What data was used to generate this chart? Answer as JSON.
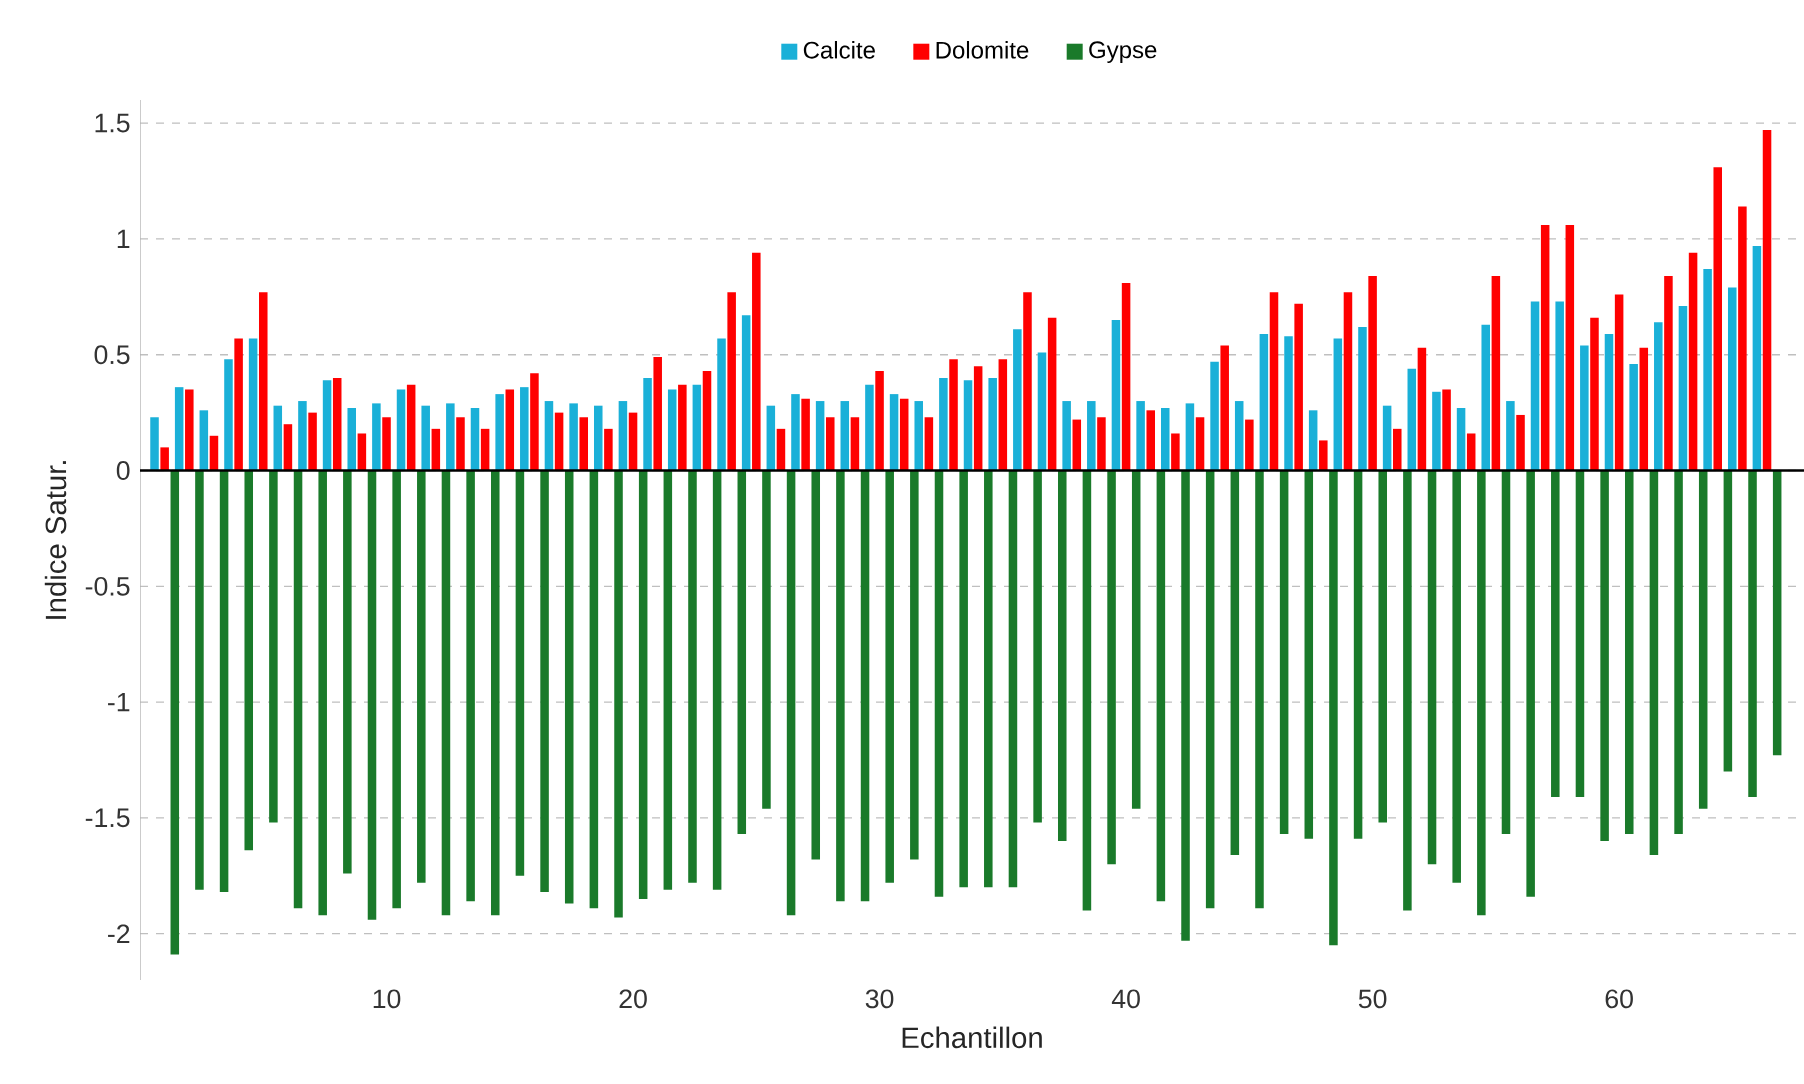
{
  "chart_data": {
    "type": "bar",
    "xlabel": "Echantillon",
    "ylabel": "Indice Satur.",
    "x": [
      1,
      2,
      3,
      4,
      5,
      6,
      7,
      8,
      9,
      10,
      11,
      12,
      13,
      14,
      15,
      16,
      17,
      18,
      19,
      20,
      21,
      22,
      23,
      24,
      25,
      26,
      27,
      28,
      29,
      30,
      31,
      32,
      33,
      34,
      35,
      36,
      37,
      38,
      39,
      40,
      41,
      42,
      43,
      44,
      45,
      46,
      47,
      48,
      49,
      50,
      51,
      52,
      53,
      54,
      55,
      56,
      57,
      58,
      59,
      60,
      61,
      62,
      63,
      64,
      65,
      66
    ],
    "series": [
      {
        "name": "Calcite",
        "color": "#1ab0d8",
        "values": [
          0.23,
          0.36,
          0.26,
          0.48,
          0.57,
          0.28,
          0.3,
          0.39,
          0.27,
          0.29,
          0.35,
          0.28,
          0.29,
          0.27,
          0.33,
          0.36,
          0.3,
          0.29,
          0.28,
          0.3,
          0.4,
          0.35,
          0.37,
          0.57,
          0.67,
          0.28,
          0.33,
          0.3,
          0.3,
          0.37,
          0.33,
          0.3,
          0.4,
          0.39,
          0.4,
          0.61,
          0.51,
          0.3,
          0.3,
          0.65,
          0.3,
          0.27,
          0.29,
          0.47,
          0.3,
          0.59,
          0.58,
          0.26,
          0.57,
          0.62,
          0.28,
          0.44,
          0.34,
          0.27,
          0.63,
          0.3,
          0.73,
          0.73,
          0.54,
          0.59,
          0.46,
          0.64,
          0.71,
          0.87,
          0.79,
          0.97
        ]
      },
      {
        "name": "Dolomite",
        "color": "#ff0000",
        "values": [
          0.1,
          0.35,
          0.15,
          0.57,
          0.77,
          0.2,
          0.25,
          0.4,
          0.16,
          0.23,
          0.37,
          0.18,
          0.23,
          0.18,
          0.35,
          0.42,
          0.25,
          0.23,
          0.18,
          0.25,
          0.49,
          0.37,
          0.43,
          0.77,
          0.94,
          0.18,
          0.31,
          0.23,
          0.23,
          0.43,
          0.31,
          0.23,
          0.48,
          0.45,
          0.48,
          0.77,
          0.66,
          0.22,
          0.23,
          0.81,
          0.26,
          0.16,
          0.23,
          0.54,
          0.22,
          0.77,
          0.72,
          0.13,
          0.77,
          0.84,
          0.18,
          0.53,
          0.35,
          0.16,
          0.84,
          0.24,
          1.06,
          1.06,
          0.66,
          0.76,
          0.53,
          0.84,
          0.94,
          1.31,
          1.14,
          1.47
        ]
      },
      {
        "name": "Gypse",
        "color": "#1a7a2a",
        "values": [
          -2.09,
          -1.81,
          -1.82,
          -1.64,
          -1.52,
          -1.89,
          -1.92,
          -1.74,
          -1.94,
          -1.89,
          -1.78,
          -1.92,
          -1.86,
          -1.92,
          -1.75,
          -1.82,
          -1.87,
          -1.89,
          -1.93,
          -1.85,
          -1.81,
          -1.78,
          -1.81,
          -1.57,
          -1.46,
          -1.92,
          -1.68,
          -1.86,
          -1.86,
          -1.78,
          -1.68,
          -1.84,
          -1.8,
          -1.8,
          -1.8,
          -1.52,
          -1.6,
          -1.9,
          -1.7,
          -1.46,
          -1.86,
          -2.03,
          -1.89,
          -1.66,
          -1.89,
          -1.57,
          -1.59,
          -2.05,
          -1.59,
          -1.52,
          -1.9,
          -1.7,
          -1.78,
          -1.92,
          -1.57,
          -1.84,
          -1.41,
          -1.41,
          -1.6,
          -1.57,
          -1.66,
          -1.57,
          -1.46,
          -1.3,
          -1.41,
          -1.23
        ]
      }
    ],
    "xlim": [
      0,
      67.5
    ],
    "xticks": [
      10,
      20,
      30,
      40,
      50,
      60
    ],
    "ylim": [
      -2.2,
      1.6
    ],
    "yticks": [
      -2,
      -1.5,
      -1,
      -0.5,
      0,
      0.5,
      1,
      1.5
    ],
    "grid": "y",
    "legend": "top"
  }
}
